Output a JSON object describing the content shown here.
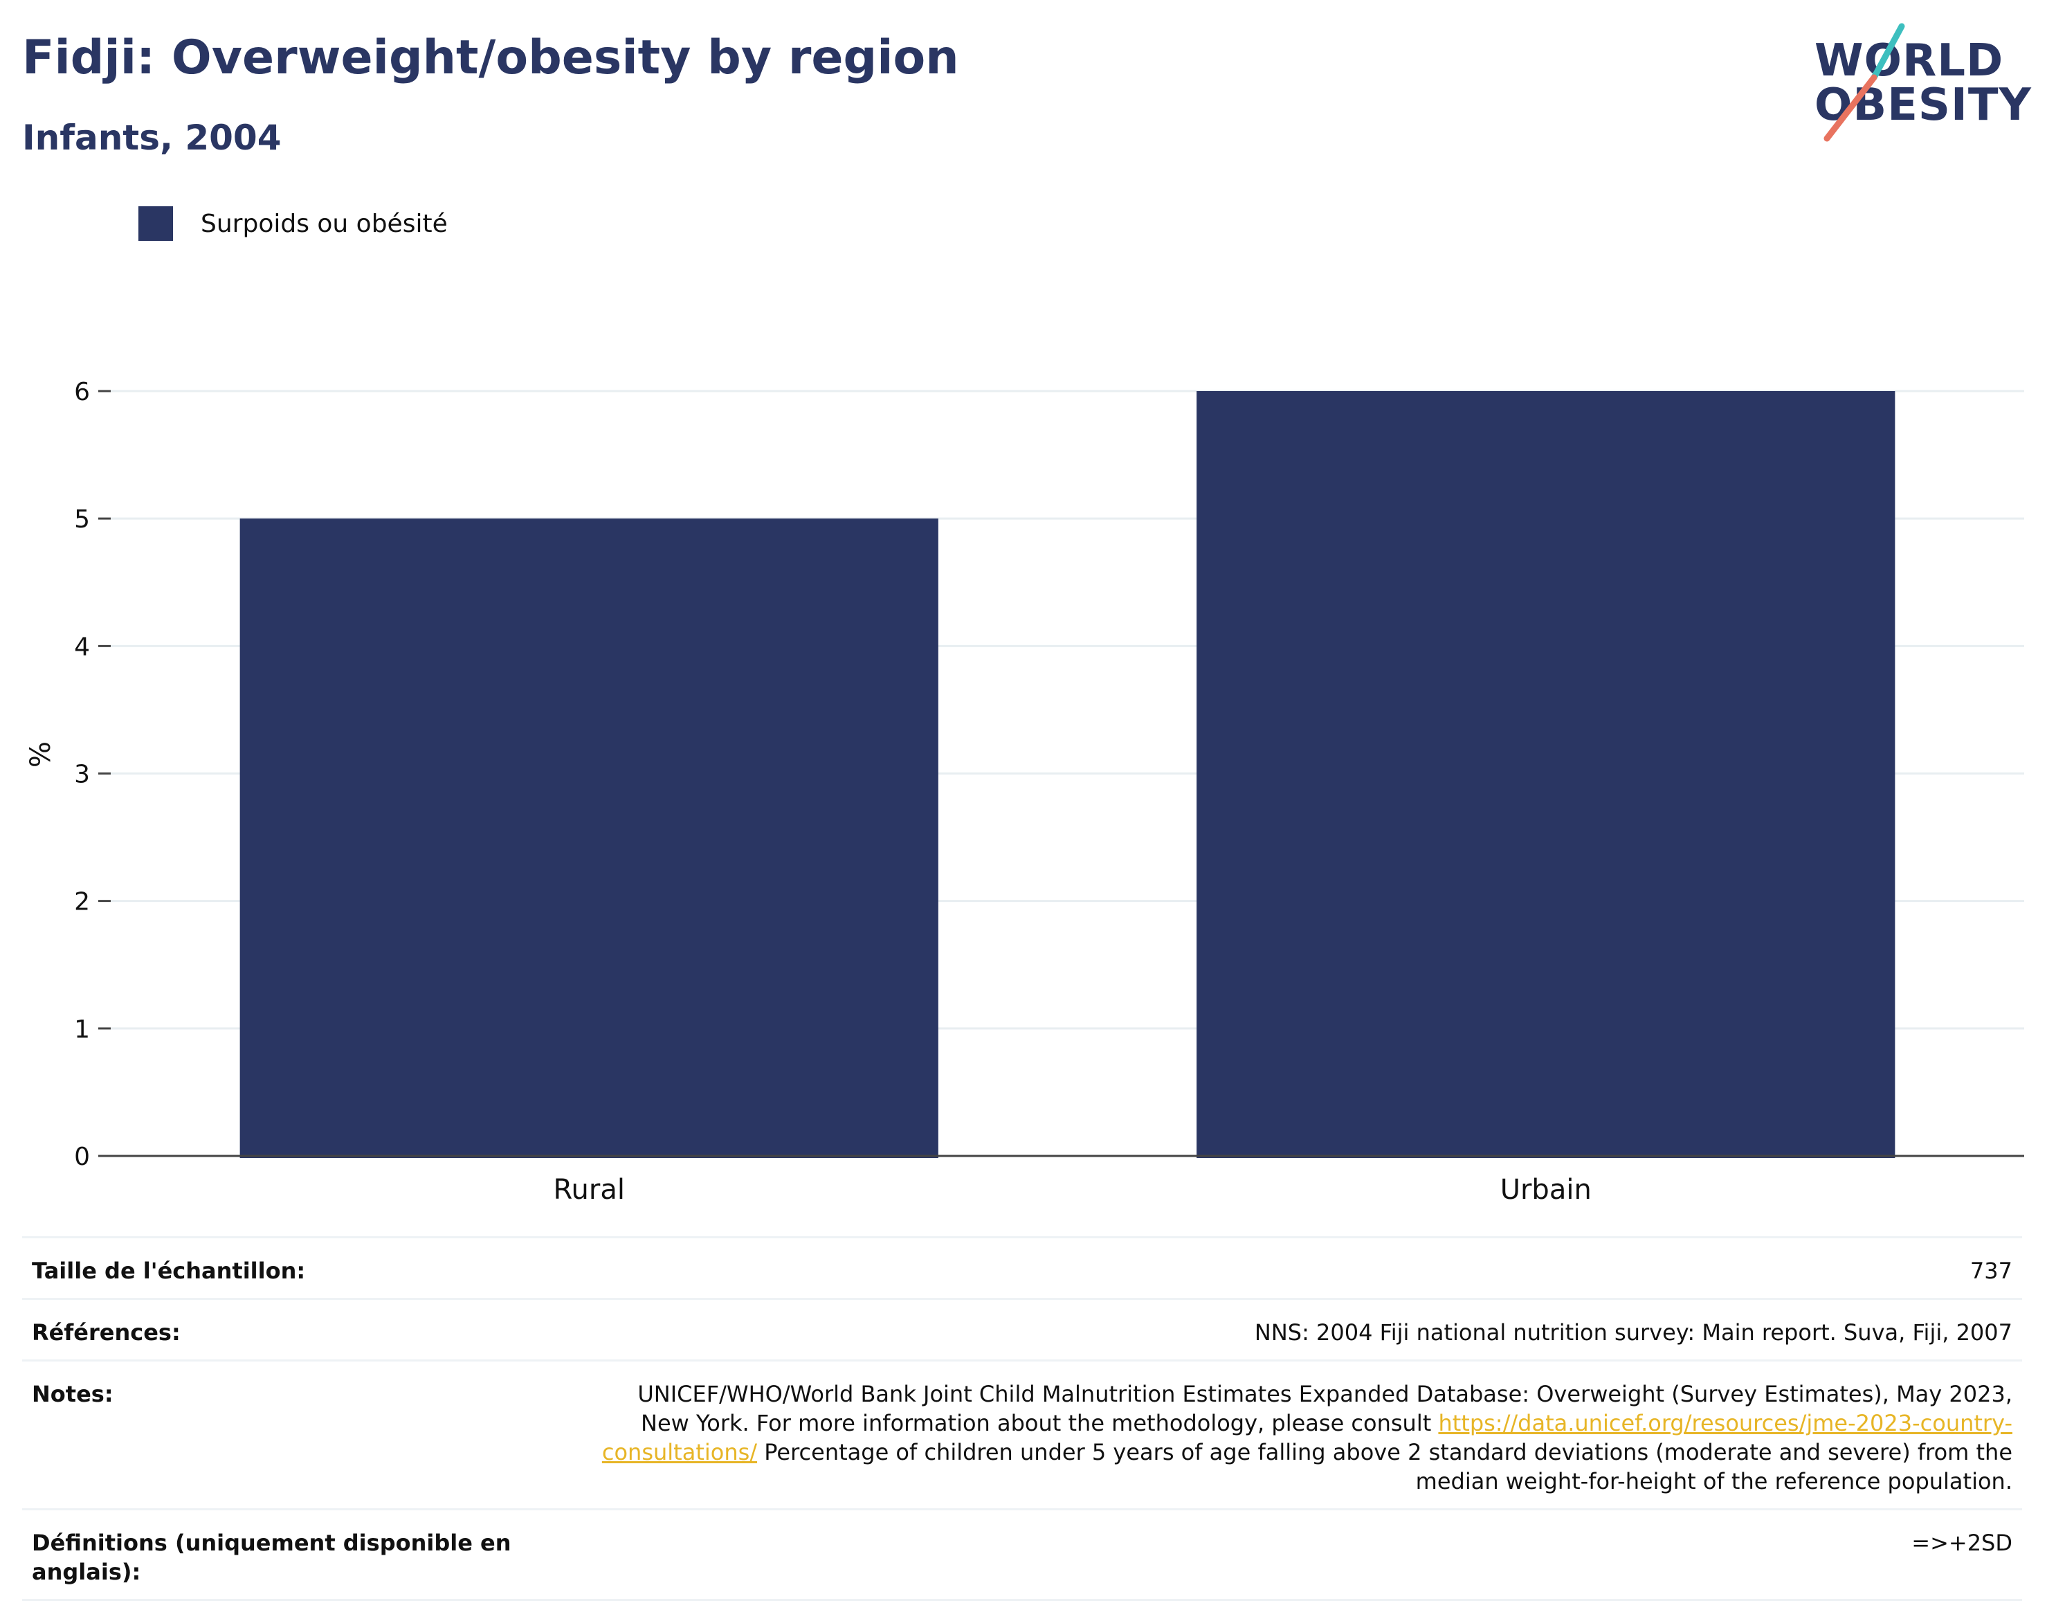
{
  "header": {
    "title": "Fidji: Overweight/obesity by region",
    "subtitle": "Infants, 2004"
  },
  "logo": {
    "line1": "WORLD",
    "line2": "OBESITY"
  },
  "colors": {
    "bar": "#2a3663",
    "title": "#2a3663",
    "link": "#e7b526",
    "logo_teal": "#3dbfbf",
    "logo_coral": "#e8735f"
  },
  "chart_data": {
    "type": "bar",
    "categories": [
      "Rural",
      "Urbain"
    ],
    "series": [
      {
        "name": "Surpoids ou obésité",
        "values": [
          5,
          6
        ]
      }
    ],
    "ylabel": "%",
    "xlabel": "",
    "ylim": [
      0,
      6
    ],
    "yticks": [
      0,
      1,
      2,
      3,
      4,
      5,
      6
    ],
    "grid": true,
    "legend": "top-left"
  },
  "table": {
    "sample_label": "Taille de l'échantillon:",
    "sample_value": "737",
    "references_label": "Références:",
    "references_value": "NNS: 2004 Fiji national nutrition survey: Main report. Suva, Fiji, 2007",
    "notes_label": "Notes:",
    "notes_line1": "UNICEF/WHO/World Bank Joint Child Malnutrition Estimates Expanded Database: Overweight (Survey Estimates), May 2023, New York. For more information about the methodology, please consult ",
    "notes_link": "https://data.unicef.org/resources/jme-2023-country-consultations/",
    "notes_line2": "Percentage of children under 5 years of age falling above 2 standard deviations (moderate and severe) from the median weight-for-height of the reference population.",
    "definitions_label": "Définitions (uniquement disponible en anglais):",
    "definitions_value": "=>+2SD"
  }
}
